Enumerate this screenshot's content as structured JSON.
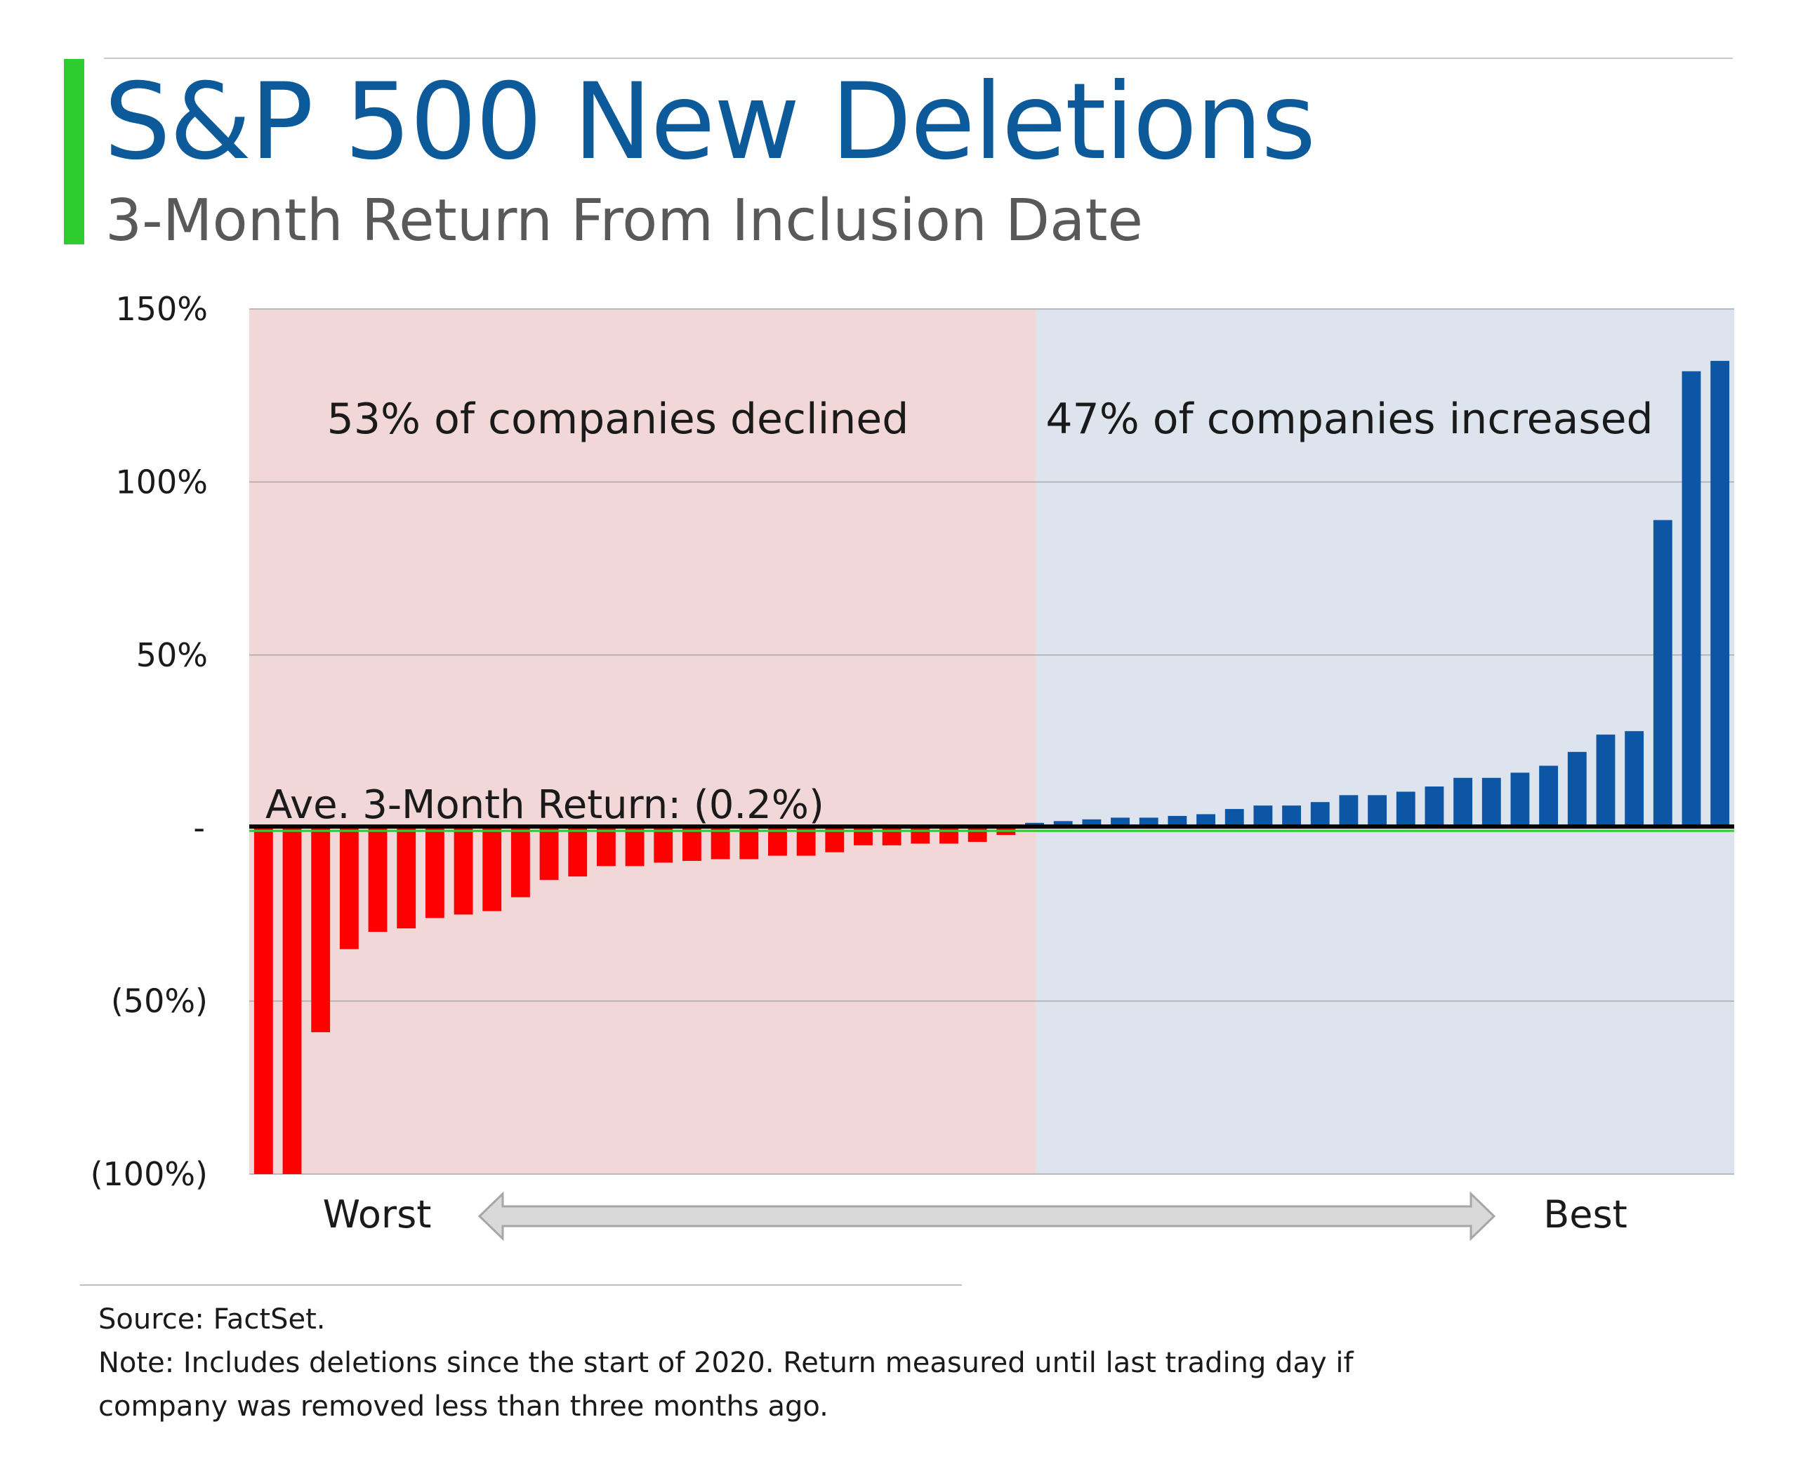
{
  "title": "S&P 500 New Deletions",
  "subtitle": "3-Month Return From Inclusion Date",
  "colors": {
    "accent": "#2ecc2e",
    "title": "#0d5a9b",
    "negative_bar": "#ff0000",
    "positive_bar": "#0d55a5",
    "negative_region": "#f2d7d9",
    "positive_region": "#dee4ee",
    "average_line": "#000000",
    "zero_line": "#2ecc2e"
  },
  "chart_data": {
    "type": "bar",
    "title": "S&P 500 New Deletions",
    "subtitle": "3-Month Return From Inclusion Date",
    "ylabel": "",
    "xlabel": "",
    "ylim": [
      -100,
      150
    ],
    "yticks": [
      {
        "value": 150,
        "label": "150%"
      },
      {
        "value": 100,
        "label": "100%"
      },
      {
        "value": 50,
        "label": "50%"
      },
      {
        "value": 0,
        "label": "-"
      },
      {
        "value": -50,
        "label": "(50%)"
      },
      {
        "value": -100,
        "label": "(100%)"
      }
    ],
    "grid": true,
    "values": [
      -100,
      -100,
      -59,
      -35,
      -30,
      -29,
      -26,
      -25,
      -24,
      -20,
      -15,
      -14,
      -11,
      -11,
      -10,
      -9.5,
      -9,
      -9,
      -8,
      -8,
      -7,
      -5,
      -5,
      -4.5,
      -4.5,
      -4,
      -2,
      1.5,
      2,
      2.5,
      3,
      3,
      3.5,
      4,
      5.5,
      6.5,
      6.5,
      7.5,
      9.5,
      9.5,
      10.5,
      12,
      14.5,
      14.5,
      16,
      18,
      22,
      27,
      28,
      89,
      132,
      135
    ],
    "regions": [
      {
        "label": "53% of companies declined",
        "sign": "negative"
      },
      {
        "label": "47% of companies increased",
        "sign": "positive"
      }
    ],
    "average": {
      "value": -0.2,
      "label": "Ave. 3-Month Return: (0.2%)"
    },
    "x_axis_labels": {
      "left": "Worst",
      "right": "Best"
    }
  },
  "footnotes": {
    "source": "Source: FactSet.",
    "note": "Note: Includes deletions since the start of 2020. Return measured until last trading day if company was removed less than three months ago."
  }
}
